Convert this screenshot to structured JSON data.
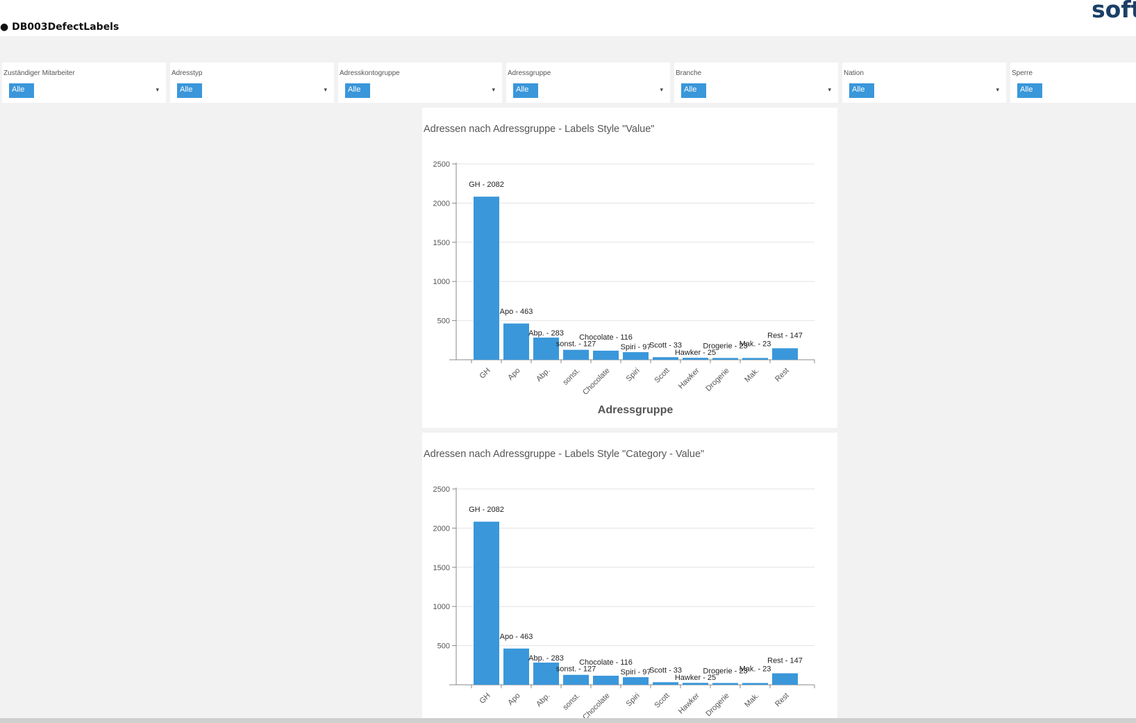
{
  "header": {
    "title": "● DB003DefectLabels",
    "brand": "softw"
  },
  "filters": [
    {
      "label": "Zuständiger Mitarbeiter",
      "value": "Alle"
    },
    {
      "label": "Adresstyp",
      "value": "Alle"
    },
    {
      "label": "Adresskontogruppe",
      "value": "Alle"
    },
    {
      "label": "Adressgruppe",
      "value": "Alle"
    },
    {
      "label": "Branche",
      "value": "Alle"
    },
    {
      "label": "Nation",
      "value": "Alle"
    },
    {
      "label": "Sperre",
      "value": "Alle"
    }
  ],
  "colors": {
    "bar": "#3a97da",
    "chip": "#3a97da",
    "background": "#f2f2f2"
  },
  "chart_data": [
    {
      "type": "bar",
      "title": "Adressen nach Adressgruppe - Labels Style \"Value\"",
      "xlabel": "Adressgruppe",
      "ylabel": "",
      "ylim": [
        0,
        2500
      ],
      "yticks": [
        500,
        1000,
        1500,
        2000,
        2500
      ],
      "grid": true,
      "categories": [
        "GH",
        "Apo",
        "Abp.",
        "sonst.",
        "Chocolate",
        "Spiri",
        "Scott",
        "Hawker",
        "Drogerie",
        "Mak.",
        "Rest"
      ],
      "values": [
        2082,
        463,
        283,
        127,
        116,
        97,
        33,
        25,
        23,
        23,
        147
      ],
      "data_labels": [
        "GH - 2082",
        "Apo - 463",
        "Abp. - 283",
        "sonst. - 127",
        "Chocolate - 116",
        "Spiri - 97",
        "Scott - 33",
        "Hawker - 25",
        "Drogerie - 23",
        "Mak. - 23",
        "Rest - 147"
      ]
    },
    {
      "type": "bar",
      "title": "Adressen nach Adressgruppe - Labels Style \"Category - Value\"",
      "xlabel": "",
      "ylabel": "",
      "ylim": [
        0,
        2500
      ],
      "yticks": [
        500,
        1000,
        1500,
        2000,
        2500
      ],
      "grid": true,
      "categories": [
        "GH",
        "Apo",
        "Abp.",
        "sonst.",
        "Chocolate",
        "Spiri",
        "Scott",
        "Hawker",
        "Drogerie",
        "Mak.",
        "Rest"
      ],
      "values": [
        2082,
        463,
        283,
        127,
        116,
        97,
        33,
        25,
        23,
        23,
        147
      ],
      "data_labels": [
        "GH - 2082",
        "Apo - 463",
        "Abp. - 283",
        "sonst. - 127",
        "Chocolate - 116",
        "Spiri - 97",
        "Scott - 33",
        "Hawker - 25",
        "Drogerie - 23",
        "Mak. - 23",
        "Rest - 147"
      ]
    }
  ]
}
